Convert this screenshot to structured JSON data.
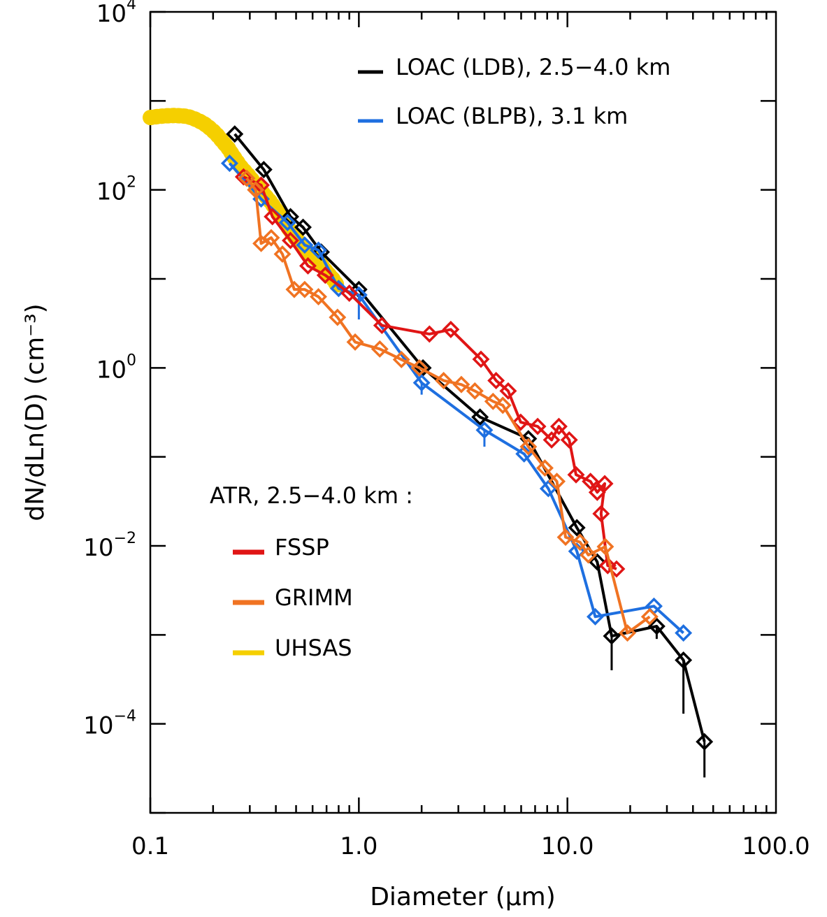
{
  "chart_data": {
    "type": "line",
    "title": "",
    "xlabel": "Diameter (µm)",
    "ylabel": "dN/dLn(D) (cm⁻³)",
    "xscale": "log",
    "yscale": "log",
    "xlim": [
      0.1,
      100
    ],
    "ylim": [
      1e-05,
      10000
    ],
    "x_tick_labels": [
      "0.1",
      "1.0",
      "10.0",
      "100.0"
    ],
    "x_ticks": [
      0.1,
      1,
      10,
      100
    ],
    "y_ticks": [
      {
        "value": 10000,
        "base": "10",
        "exp": "4"
      },
      {
        "value": 100,
        "base": "10",
        "exp": "2"
      },
      {
        "value": 1,
        "base": "10",
        "exp": "0"
      },
      {
        "value": 0.01,
        "base": "10",
        "exp": "−2"
      },
      {
        "value": 0.0001,
        "base": "10",
        "exp": "−4"
      }
    ],
    "legend_top": [
      {
        "series": "ldb",
        "label": "LOAC (LDB), 2.5−4.0 km"
      },
      {
        "series": "blpb",
        "label": "LOAC (BLPB), 3.1 km"
      }
    ],
    "legend_bottom_title": "ATR, 2.5−4.0 km :",
    "legend_bottom": [
      {
        "series": "fssp",
        "label": "FSSP"
      },
      {
        "series": "grimm",
        "label": "GRIMM"
      },
      {
        "series": "uhsas",
        "label": "UHSAS"
      }
    ],
    "series": [
      {
        "id": "uhsas",
        "name": "UHSAS",
        "color": "#f5cf00",
        "marker": "dot",
        "x": [
          0.1,
          0.11,
          0.12,
          0.13,
          0.14,
          0.15,
          0.16,
          0.17,
          0.18,
          0.19,
          0.2,
          0.21,
          0.22,
          0.235,
          0.25,
          0.27,
          0.3,
          0.33,
          0.35,
          0.38,
          0.4,
          0.43,
          0.45,
          0.48,
          0.5,
          0.55,
          0.6,
          0.65,
          0.7,
          0.75,
          0.8
        ],
        "y": [
          650,
          670,
          680,
          685,
          680,
          670,
          640,
          600,
          560,
          510,
          460,
          410,
          360,
          300,
          240,
          185,
          140,
          105,
          90,
          72,
          60,
          48,
          40,
          32,
          28,
          22,
          18,
          15,
          12,
          10,
          8
        ]
      },
      {
        "id": "ldb",
        "name": "LOAC (LDB), 2.5-4.0 km",
        "color": "#000000",
        "marker": "diamond",
        "x": [
          0.254,
          0.35,
          0.47,
          0.54,
          0.66,
          1.0,
          2.03,
          3.81,
          6.5,
          11.1,
          13.9,
          16.3,
          26.8,
          36,
          45.4
        ],
        "y": [
          424,
          169,
          50,
          38,
          20,
          7.6,
          1.0,
          0.28,
          0.16,
          0.016,
          0.0066,
          0.00097,
          0.00125,
          0.00052,
          6.3e-05
        ],
        "err_lo": [
          null,
          null,
          null,
          null,
          null,
          null,
          null,
          null,
          null,
          null,
          null,
          0.0004,
          0.0009,
          0.00013,
          2.5e-05
        ],
        "err_hi": [
          null,
          null,
          null,
          null,
          null,
          null,
          null,
          null,
          null,
          null,
          null,
          null,
          null,
          null,
          null
        ]
      },
      {
        "id": "blpb",
        "name": "LOAC (BLPB), 3.1 km",
        "color": "#1e6fe0",
        "marker": "diamond",
        "x": [
          0.24,
          0.34,
          0.455,
          0.55,
          0.64,
          0.8,
          1.0,
          2.0,
          4.0,
          6.2,
          8.1,
          11.1,
          13.6,
          26,
          36
        ],
        "y": [
          199,
          79,
          43,
          24,
          21,
          7.8,
          6.6,
          0.68,
          0.2,
          0.108,
          0.044,
          0.0087,
          0.0016,
          0.0021,
          0.00105
        ],
        "err_lo": [
          null,
          null,
          null,
          null,
          null,
          null,
          3.5,
          0.5,
          0.13,
          null,
          null,
          null,
          null,
          null,
          null
        ],
        "err_hi": [
          null,
          null,
          null,
          null,
          null,
          null,
          null,
          null,
          null,
          null,
          null,
          null,
          null,
          null,
          null
        ]
      },
      {
        "id": "fssp",
        "name": "FSSP",
        "color": "#e01515",
        "marker": "diamond",
        "x": [
          0.28,
          0.34,
          0.385,
          0.47,
          0.57,
          0.69,
          0.9,
          1.29,
          2.18,
          2.76,
          3.85,
          4.55,
          5.2,
          5.97,
          7.2,
          8.4,
          9.1,
          10.2,
          11,
          12.9,
          13.9,
          15.1,
          14.5,
          15.6,
          17.2
        ],
        "y": [
          140,
          113,
          50,
          27,
          14,
          11,
          6.9,
          3.0,
          2.4,
          2.7,
          1.25,
          0.72,
          0.55,
          0.245,
          0.22,
          0.155,
          0.22,
          0.155,
          0.063,
          0.053,
          0.04,
          0.05,
          0.023,
          0.006,
          0.0055
        ]
      },
      {
        "id": "grimm",
        "name": "GRIMM",
        "color": "#f07322",
        "marker": "diamond",
        "x": [
          0.29,
          0.32,
          0.34,
          0.38,
          0.43,
          0.49,
          0.55,
          0.64,
          0.79,
          0.96,
          1.26,
          1.6,
          1.95,
          2.55,
          3.1,
          3.6,
          4.4,
          4.9,
          6.5,
          7.8,
          8.9,
          9.8,
          11.5,
          12.6,
          15.2,
          19.4,
          24.8
        ],
        "y": [
          135,
          100,
          25,
          29,
          19,
          7.6,
          7.6,
          6.3,
          3.7,
          1.95,
          1.63,
          1.24,
          1.0,
          0.72,
          0.65,
          0.55,
          0.42,
          0.38,
          0.13,
          0.075,
          0.053,
          0.0125,
          0.011,
          0.0079,
          0.0098,
          0.00105,
          0.0016
        ]
      }
    ]
  }
}
